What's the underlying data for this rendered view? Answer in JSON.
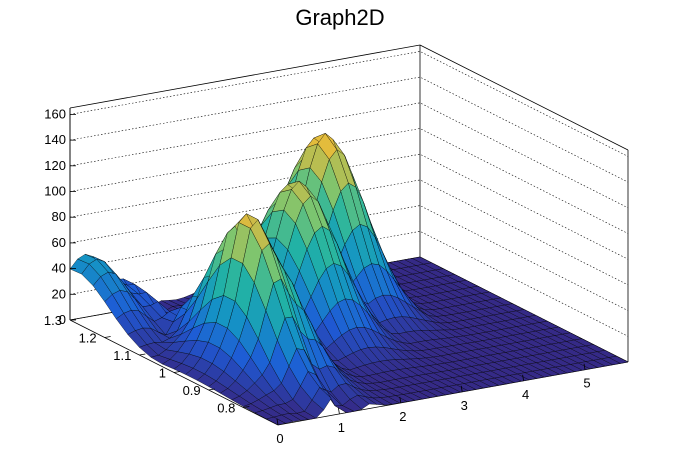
{
  "chart_data": {
    "type": "surface",
    "title": "Graph2D",
    "xlabel": "",
    "ylabel": "",
    "zlabel": "",
    "xlim": [
      0,
      5.7
    ],
    "ylim": [
      0.7,
      1.3
    ],
    "zlim": [
      0,
      165
    ],
    "x_ticks": [
      0,
      1,
      2,
      3,
      4,
      5
    ],
    "y_ticks": [
      0.8,
      0.9,
      1,
      1.1,
      1.2,
      1.3
    ],
    "z_ticks": [
      0,
      20,
      40,
      60,
      80,
      100,
      120,
      140,
      160
    ],
    "grid": true,
    "colormap": [
      "#352a87",
      "#1e5bd6",
      "#1593c5",
      "#22b3a4",
      "#7cc56f",
      "#e0b93e",
      "#fbd22f",
      "#f9fb0e"
    ],
    "peaks": [
      {
        "x": 0.25,
        "y": 1.28,
        "z": 50
      },
      {
        "x": 1.05,
        "y": 0.95,
        "z": 117
      },
      {
        "x": 2.6,
        "y": 1.1,
        "z": 113
      },
      {
        "x": 3.6,
        "y": 1.2,
        "z": 128
      }
    ]
  }
}
